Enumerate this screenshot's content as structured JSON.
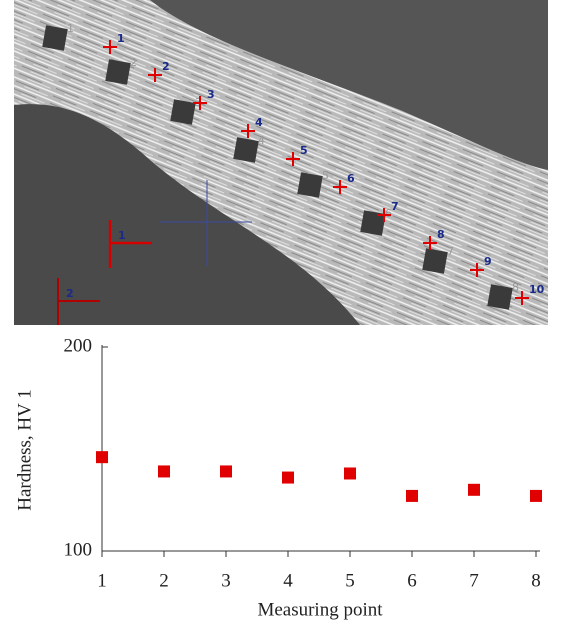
{
  "micrograph": {
    "point_labels": [
      "1",
      "2",
      "3",
      "4",
      "5",
      "6",
      "7",
      "8",
      "9",
      "10"
    ],
    "indent_labels": [
      "1",
      "2",
      "3",
      "4",
      "5",
      "6",
      "7",
      "8"
    ],
    "direction_labels": [
      "1",
      "2"
    ]
  },
  "chart_data": {
    "type": "scatter",
    "x": [
      1,
      2,
      3,
      4,
      5,
      6,
      7,
      8
    ],
    "series": [
      {
        "color": "#e00000",
        "values": [
          146,
          139,
          139,
          136,
          138,
          127,
          130,
          127
        ]
      }
    ],
    "xlim": [
      1,
      8
    ],
    "xticks": [
      1,
      2,
      3,
      4,
      5,
      6,
      7,
      8
    ],
    "ylim": [
      100,
      200
    ],
    "yticks": [
      100,
      200
    ],
    "x_label": "Measuring point",
    "y_label": "Hardness, HV 1"
  }
}
